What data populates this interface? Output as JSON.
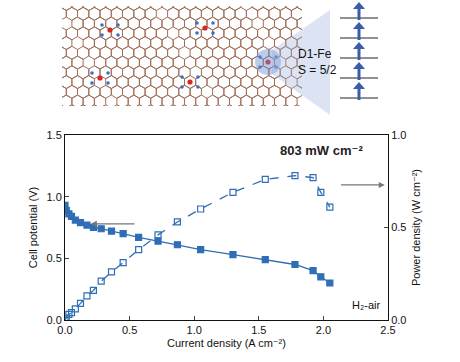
{
  "figure_labels": {
    "site": "D1-Fe",
    "spin": "S = 5/2"
  },
  "chart_data": {
    "type": "line",
    "x_label": "Current density (A cm⁻²)",
    "y_label": "Cell potential (V)",
    "y2_label": "Power density (W cm⁻²)",
    "annotations": [
      "803 mW cm⁻²",
      "H₂-air"
    ],
    "x": [
      0.0,
      0.01,
      0.03,
      0.05,
      0.08,
      0.12,
      0.17,
      0.22,
      0.28,
      0.36,
      0.45,
      0.57,
      0.72,
      0.87,
      1.05,
      1.3,
      1.55,
      1.78,
      1.92,
      1.98,
      2.05
    ],
    "series": [
      {
        "name": "Cell potential",
        "color": "#2f6db5",
        "marker": "square",
        "line_style": "solid",
        "values": [
          0.93,
          0.89,
          0.86,
          0.84,
          0.81,
          0.79,
          0.77,
          0.75,
          0.74,
          0.72,
          0.7,
          0.67,
          0.64,
          0.61,
          0.57,
          0.53,
          0.49,
          0.45,
          0.4,
          0.35,
          0.3
        ]
      },
      {
        "name": "Power density",
        "color": "#2f6db5",
        "marker": "square-open",
        "line_style": "dash",
        "axis": "y2",
        "values": [
          0.0,
          0.01,
          0.03,
          0.04,
          0.06,
          0.09,
          0.13,
          0.16,
          0.21,
          0.26,
          0.31,
          0.38,
          0.46,
          0.53,
          0.6,
          0.69,
          0.76,
          0.78,
          0.77,
          0.69,
          0.61
        ]
      }
    ],
    "xlim": [
      0.0,
      2.5
    ],
    "xticks": [
      {
        "value": 0,
        "label": "0.0"
      },
      0.5,
      {
        "value": 1,
        "label": "1.0"
      },
      1.5,
      {
        "value": 2,
        "label": "2.0"
      },
      2.5
    ],
    "ylim": [
      0.0,
      1.5
    ],
    "yticks": [
      {
        "value": 0,
        "label": "0.0"
      },
      0.5,
      {
        "value": 1,
        "label": "1.0"
      },
      1.5
    ],
    "y2lim": [
      0.0,
      1.0
    ],
    "y2ticks": [
      {
        "value": 0,
        "label": "0.0"
      },
      0.5,
      {
        "value": 1,
        "label": "1.0"
      }
    ],
    "grid": false,
    "legend": false
  }
}
